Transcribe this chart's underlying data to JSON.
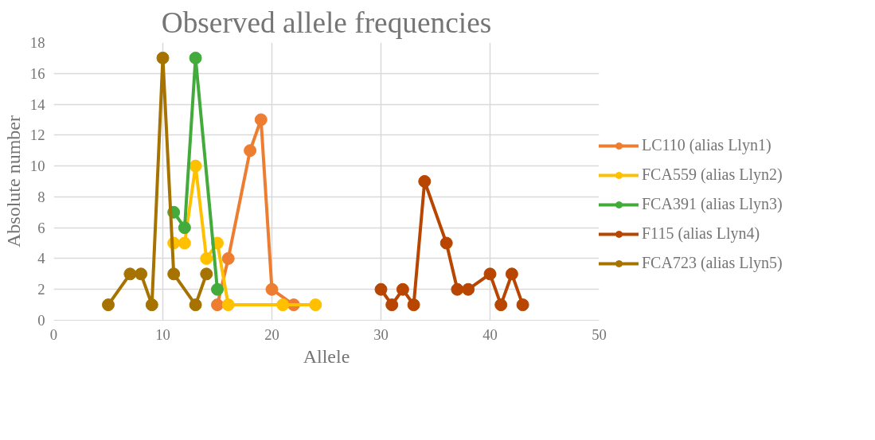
{
  "chart_data": {
    "type": "line",
    "title": "Observed allele frequencies",
    "xlabel": "Allele",
    "ylabel": "Absolute number",
    "xlim": [
      0,
      50
    ],
    "xticks": [
      0,
      10,
      20,
      30,
      40,
      50
    ],
    "ylim": [
      0,
      18
    ],
    "yticks": [
      0,
      2,
      4,
      6,
      8,
      10,
      12,
      14,
      16,
      18
    ],
    "grid": true,
    "legend": "right",
    "marker": "circle",
    "line_style": "solid",
    "series": [
      {
        "name": "LC110 (alias Llyn1)",
        "color": "#ed7d31",
        "x": [
          15,
          16,
          18,
          19,
          20,
          22
        ],
        "values": [
          1,
          4,
          11,
          13,
          2,
          1
        ]
      },
      {
        "name": "FCA559 (alias Llyn2)",
        "color": "#ffc000",
        "x": [
          11,
          12,
          13,
          14,
          15,
          16,
          21,
          24
        ],
        "values": [
          5,
          5,
          10,
          4,
          5,
          1,
          1,
          1
        ]
      },
      {
        "name": "FCA391 (alias Llyn3)",
        "color": "#43ab3b",
        "x": [
          11,
          12,
          13,
          15
        ],
        "values": [
          7,
          6,
          17,
          2
        ]
      },
      {
        "name": "F115 (alias Llyn4)",
        "color": "#b84600",
        "x": [
          30,
          31,
          32,
          33,
          34,
          36,
          37,
          38,
          40,
          41,
          42,
          43
        ],
        "values": [
          2,
          1,
          2,
          1,
          9,
          5,
          2,
          2,
          3,
          1,
          3,
          1
        ]
      },
      {
        "name": "FCA723 (alias Llyn5)",
        "color": "#a67300",
        "x": [
          5,
          7,
          8,
          9,
          10,
          11,
          13,
          14
        ],
        "values": [
          1,
          3,
          3,
          1,
          17,
          3,
          1,
          3
        ]
      }
    ]
  }
}
